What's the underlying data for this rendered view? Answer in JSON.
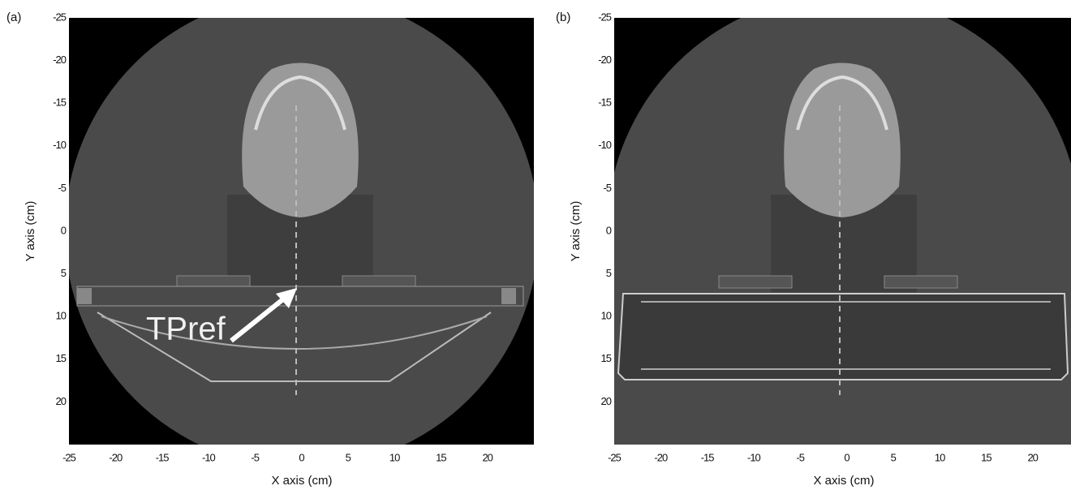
{
  "panels": [
    {
      "label": "(a)",
      "xlabel": "X axis (cm)",
      "ylabel": "Y axis (cm)",
      "annotation": "TPref",
      "xlim": [
        -25,
        25
      ],
      "ylim": [
        -25,
        25
      ],
      "xticks": [
        -25,
        -20,
        -15,
        -10,
        -5,
        0,
        5,
        10,
        15,
        20
      ],
      "yticks": [
        -25,
        -20,
        -15,
        -10,
        -5,
        0,
        5,
        10,
        15,
        20
      ]
    },
    {
      "label": "(b)",
      "xlabel": "X axis (cm)",
      "ylabel": "Y axis (cm)",
      "xlim": [
        -25,
        25
      ],
      "ylim": [
        -25,
        25
      ],
      "xticks": [
        -25,
        -20,
        -15,
        -10,
        -5,
        0,
        5,
        10,
        15,
        20
      ],
      "yticks": [
        -25,
        -20,
        -15,
        -10,
        -5,
        0,
        5,
        10,
        15,
        20
      ]
    }
  ]
}
